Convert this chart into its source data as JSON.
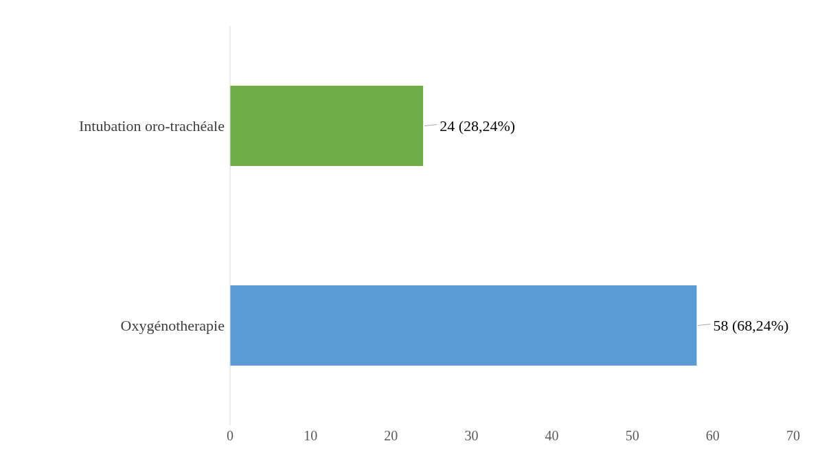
{
  "chart_data": {
    "type": "bar",
    "orientation": "horizontal",
    "categories": [
      "Intubation oro-trachéale",
      "Oxygénotherapie"
    ],
    "values": [
      24,
      58
    ],
    "colors": [
      "#70ad47",
      "#5b9bd5"
    ],
    "value_labels": [
      "24 (28,24%)",
      "58 (68,24%)"
    ],
    "xlim": [
      0,
      70
    ],
    "xticks": [
      0,
      10,
      20,
      30,
      40,
      50,
      60,
      70
    ],
    "grid": false,
    "legend": false
  }
}
